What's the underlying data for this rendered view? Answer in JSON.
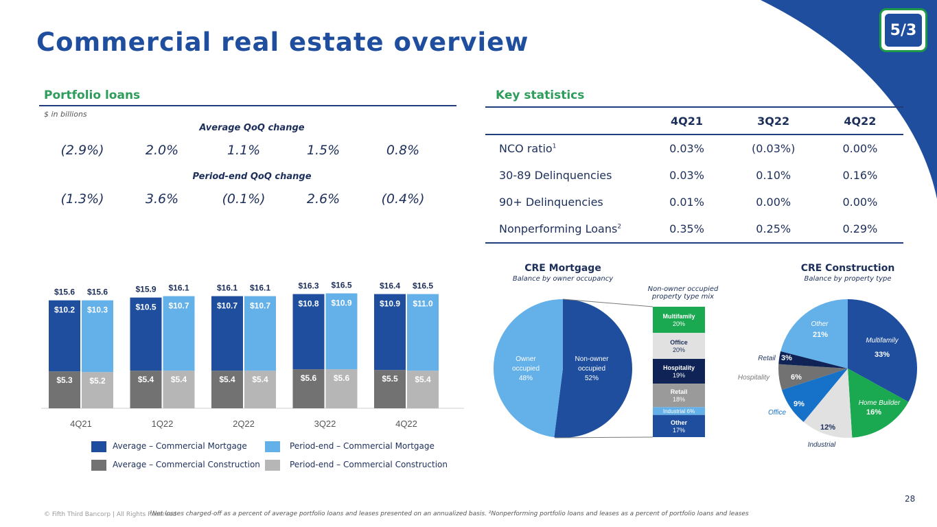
{
  "header": {
    "title": "Commercial real estate overview",
    "logo_text": "5/3",
    "page_number": "28"
  },
  "left_panel": {
    "section_title": "Portfolio loans",
    "units_note": "$ in billions",
    "avg_change_title": "Average QoQ change",
    "avg_changes": [
      "(2.9%)",
      "2.0%",
      "1.1%",
      "1.5%",
      "0.8%"
    ],
    "pe_change_title": "Period-end QoQ change",
    "pe_changes": [
      "(1.3%)",
      "3.6%",
      "(0.1%)",
      "2.6%",
      "(0.4%)"
    ]
  },
  "legend": {
    "avg_mortgage": "Average – Commercial Mortgage",
    "avg_construction": "Average – Commercial Construction",
    "pe_mortgage": "Period-end – Commercial Mortgage",
    "pe_construction": "Period-end – Commercial Construction"
  },
  "right_panel": {
    "section_title": "Key statistics",
    "columns": [
      "4Q21",
      "3Q22",
      "4Q22"
    ],
    "rows": [
      {
        "label": "NCO ratio",
        "sup": "1",
        "values": [
          "0.03%",
          "(0.03%)",
          "0.00%"
        ]
      },
      {
        "label": "30-89 Delinquencies",
        "sup": "",
        "values": [
          "0.03%",
          "0.10%",
          "0.16%"
        ]
      },
      {
        "label": "90+ Delinquencies",
        "sup": "",
        "values": [
          "0.01%",
          "0.00%",
          "0.00%"
        ]
      },
      {
        "label": "Nonperforming Loans",
        "sup": "2",
        "values": [
          "0.35%",
          "0.25%",
          "0.29%"
        ]
      }
    ]
  },
  "colors": {
    "dark_blue": "#1f4e9e",
    "light_blue": "#64b0e8",
    "dark_gray": "#727272",
    "light_gray": "#b6b6b6",
    "navy": "#0f2356",
    "green": "#1aa850",
    "pale_gray": "#e1e1e1",
    "mid_blue": "#1672c8",
    "title": "#1f4e9e",
    "accent_green": "#2e9c5a"
  },
  "chart_data": [
    {
      "type": "bar",
      "categories": [
        "4Q21",
        "1Q22",
        "2Q22",
        "3Q22",
        "4Q22"
      ],
      "stacked": true,
      "groups": [
        "Average",
        "Period-end"
      ],
      "series": [
        {
          "name": "Average – Commercial Mortgage",
          "group": "Average",
          "color": "#1f4e9e",
          "values": [
            10.2,
            10.5,
            10.7,
            10.8,
            10.9
          ],
          "labels": [
            "$10.2",
            "$10.5",
            "$10.7",
            "$10.8",
            "$10.9"
          ]
        },
        {
          "name": "Average – Commercial Construction",
          "group": "Average",
          "color": "#727272",
          "values": [
            5.3,
            5.4,
            5.4,
            5.6,
            5.5
          ],
          "labels": [
            "$5.3",
            "$5.4",
            "$5.4",
            "$5.6",
            "$5.5"
          ]
        },
        {
          "name": "Period-end – Commercial Mortgage",
          "group": "Period-end",
          "color": "#64b0e8",
          "values": [
            10.3,
            10.7,
            10.7,
            10.9,
            11.0
          ],
          "labels": [
            "$10.3",
            "$10.7",
            "$10.7",
            "$10.9",
            "$11.0"
          ]
        },
        {
          "name": "Period-end – Commercial Construction",
          "group": "Period-end",
          "color": "#b6b6b6",
          "values": [
            5.2,
            5.4,
            5.4,
            5.6,
            5.4
          ],
          "labels": [
            "$5.2",
            "$5.4",
            "$5.4",
            "$5.6",
            "$5.4"
          ]
        }
      ],
      "totals": {
        "Average": [
          "$15.6",
          "$15.9",
          "$16.1",
          "$16.3",
          "$16.4"
        ],
        "Period-end": [
          "$15.6",
          "$16.1",
          "$16.1",
          "$16.5",
          "$16.5"
        ]
      }
    },
    {
      "type": "pie",
      "title": "CRE Mortgage",
      "subtitle": "Balance by owner occupancy",
      "slices": [
        {
          "label": "Non-owner occupied",
          "value": 52,
          "display": "52%",
          "color": "#1f4e9e"
        },
        {
          "label": "Owner occupied",
          "value": 48,
          "display": "48%",
          "color": "#64b0e8"
        }
      ],
      "breakdown": {
        "title": "Non-owner occupied property type mix",
        "segments": [
          {
            "label": "Multifamily",
            "value": 20,
            "display": "20%",
            "color": "#1aa850"
          },
          {
            "label": "Office",
            "value": 20,
            "display": "20%",
            "color": "#e1e1e1"
          },
          {
            "label": "Hospitality",
            "value": 19,
            "display": "19%",
            "color": "#0f2356"
          },
          {
            "label": "Retail",
            "value": 18,
            "display": "18%",
            "color": "#9a9a9a"
          },
          {
            "label": "Industrial",
            "value": 6,
            "display": "6%",
            "color": "#64b0e8"
          },
          {
            "label": "Other",
            "value": 17,
            "display": "17%",
            "color": "#1f4e9e"
          }
        ]
      }
    },
    {
      "type": "pie",
      "title": "CRE Construction",
      "subtitle": "Balance by property type",
      "slices": [
        {
          "label": "Multifamily",
          "value": 33,
          "display": "33%",
          "color": "#1f4e9e"
        },
        {
          "label": "Home Builder",
          "value": 16,
          "display": "16%",
          "color": "#1aa850"
        },
        {
          "label": "Industrial",
          "value": 12,
          "display": "12%",
          "color": "#e1e1e1"
        },
        {
          "label": "Office",
          "value": 9,
          "display": "9%",
          "color": "#1672c8"
        },
        {
          "label": "Hospitality",
          "value": 6,
          "display": "6%",
          "color": "#727272"
        },
        {
          "label": "Retail",
          "value": 3,
          "display": "3%",
          "color": "#0f2356"
        },
        {
          "label": "Other",
          "value": 21,
          "display": "21%",
          "color": "#64b0e8"
        }
      ]
    }
  ],
  "footer": {
    "copyright": "© Fifth Third Bancorp | All Rights Reserved",
    "note": "¹Net losses charged-off as a percent of average portfolio loans and leases presented on an annualized basis. ²Nonperforming portfolio loans and leases as a percent of portfolio loans and leases"
  }
}
